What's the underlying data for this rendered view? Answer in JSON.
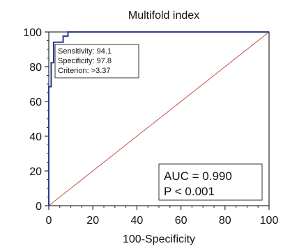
{
  "chart_data": {
    "type": "line",
    "title": "Multifold index",
    "xlabel": "100-Specificity",
    "ylabel": "",
    "xlim": [
      0,
      100
    ],
    "ylim": [
      0,
      100
    ],
    "x_ticks": [
      0,
      20,
      40,
      60,
      80,
      100
    ],
    "y_ticks": [
      0,
      20,
      40,
      60,
      80,
      100
    ],
    "grid": false,
    "series": [
      {
        "style": "roc-curve",
        "color": "#2b3a8f",
        "x": [
          0,
          0,
          1.1,
          1.1,
          2.2,
          2.2,
          6.5,
          6.5,
          8.7,
          8.7,
          100
        ],
        "y": [
          0,
          68.5,
          68.5,
          82.3,
          82.3,
          94.1,
          94.1,
          97.6,
          97.6,
          100,
          100
        ]
      },
      {
        "style": "reference-diagonal",
        "color": "#c0504d",
        "x": [
          0,
          100
        ],
        "y": [
          0,
          100
        ]
      }
    ],
    "criterion_box": {
      "lines": [
        "Sensitivity: 94.1",
        "Specificity: 97.8",
        "Criterion: >3.37"
      ]
    },
    "stats_box": {
      "lines": [
        "AUC = 0.990",
        "P < 0.001"
      ]
    }
  }
}
